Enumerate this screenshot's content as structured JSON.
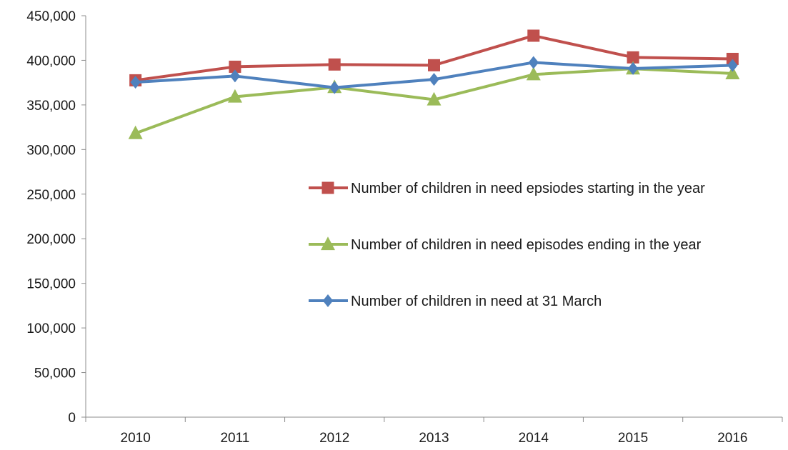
{
  "chart_data": {
    "type": "line",
    "categories": [
      "2010",
      "2011",
      "2012",
      "2013",
      "2014",
      "2015",
      "2016"
    ],
    "ylim": [
      0,
      450000
    ],
    "yticks": [
      0,
      50000,
      100000,
      150000,
      200000,
      250000,
      300000,
      350000,
      400000,
      450000
    ],
    "ytick_labels": [
      "0",
      "50,000",
      "100,000",
      "150,000",
      "200,000",
      "250,000",
      "300,000",
      "350,000",
      "400,000",
      "450,000"
    ],
    "grid": false,
    "legend_position": "right",
    "series": [
      {
        "name": "Number of children in need epsiodes starting in the year",
        "values": [
          377600,
          392800,
          395300,
          394500,
          427600,
          403300,
          401600
        ],
        "color": "#c0504d",
        "marker": "square"
      },
      {
        "name": "Number of children in need episodes ending in the year",
        "values": [
          318200,
          359100,
          369800,
          355900,
          384100,
          390600,
          385200
        ],
        "color": "#9bbb59",
        "marker": "triangle"
      },
      {
        "name": "Number of children in need at 31 March",
        "values": [
          375400,
          382400,
          369400,
          378600,
          397600,
          390800,
          394400
        ],
        "color": "#4f81bd",
        "marker": "diamond"
      }
    ]
  }
}
